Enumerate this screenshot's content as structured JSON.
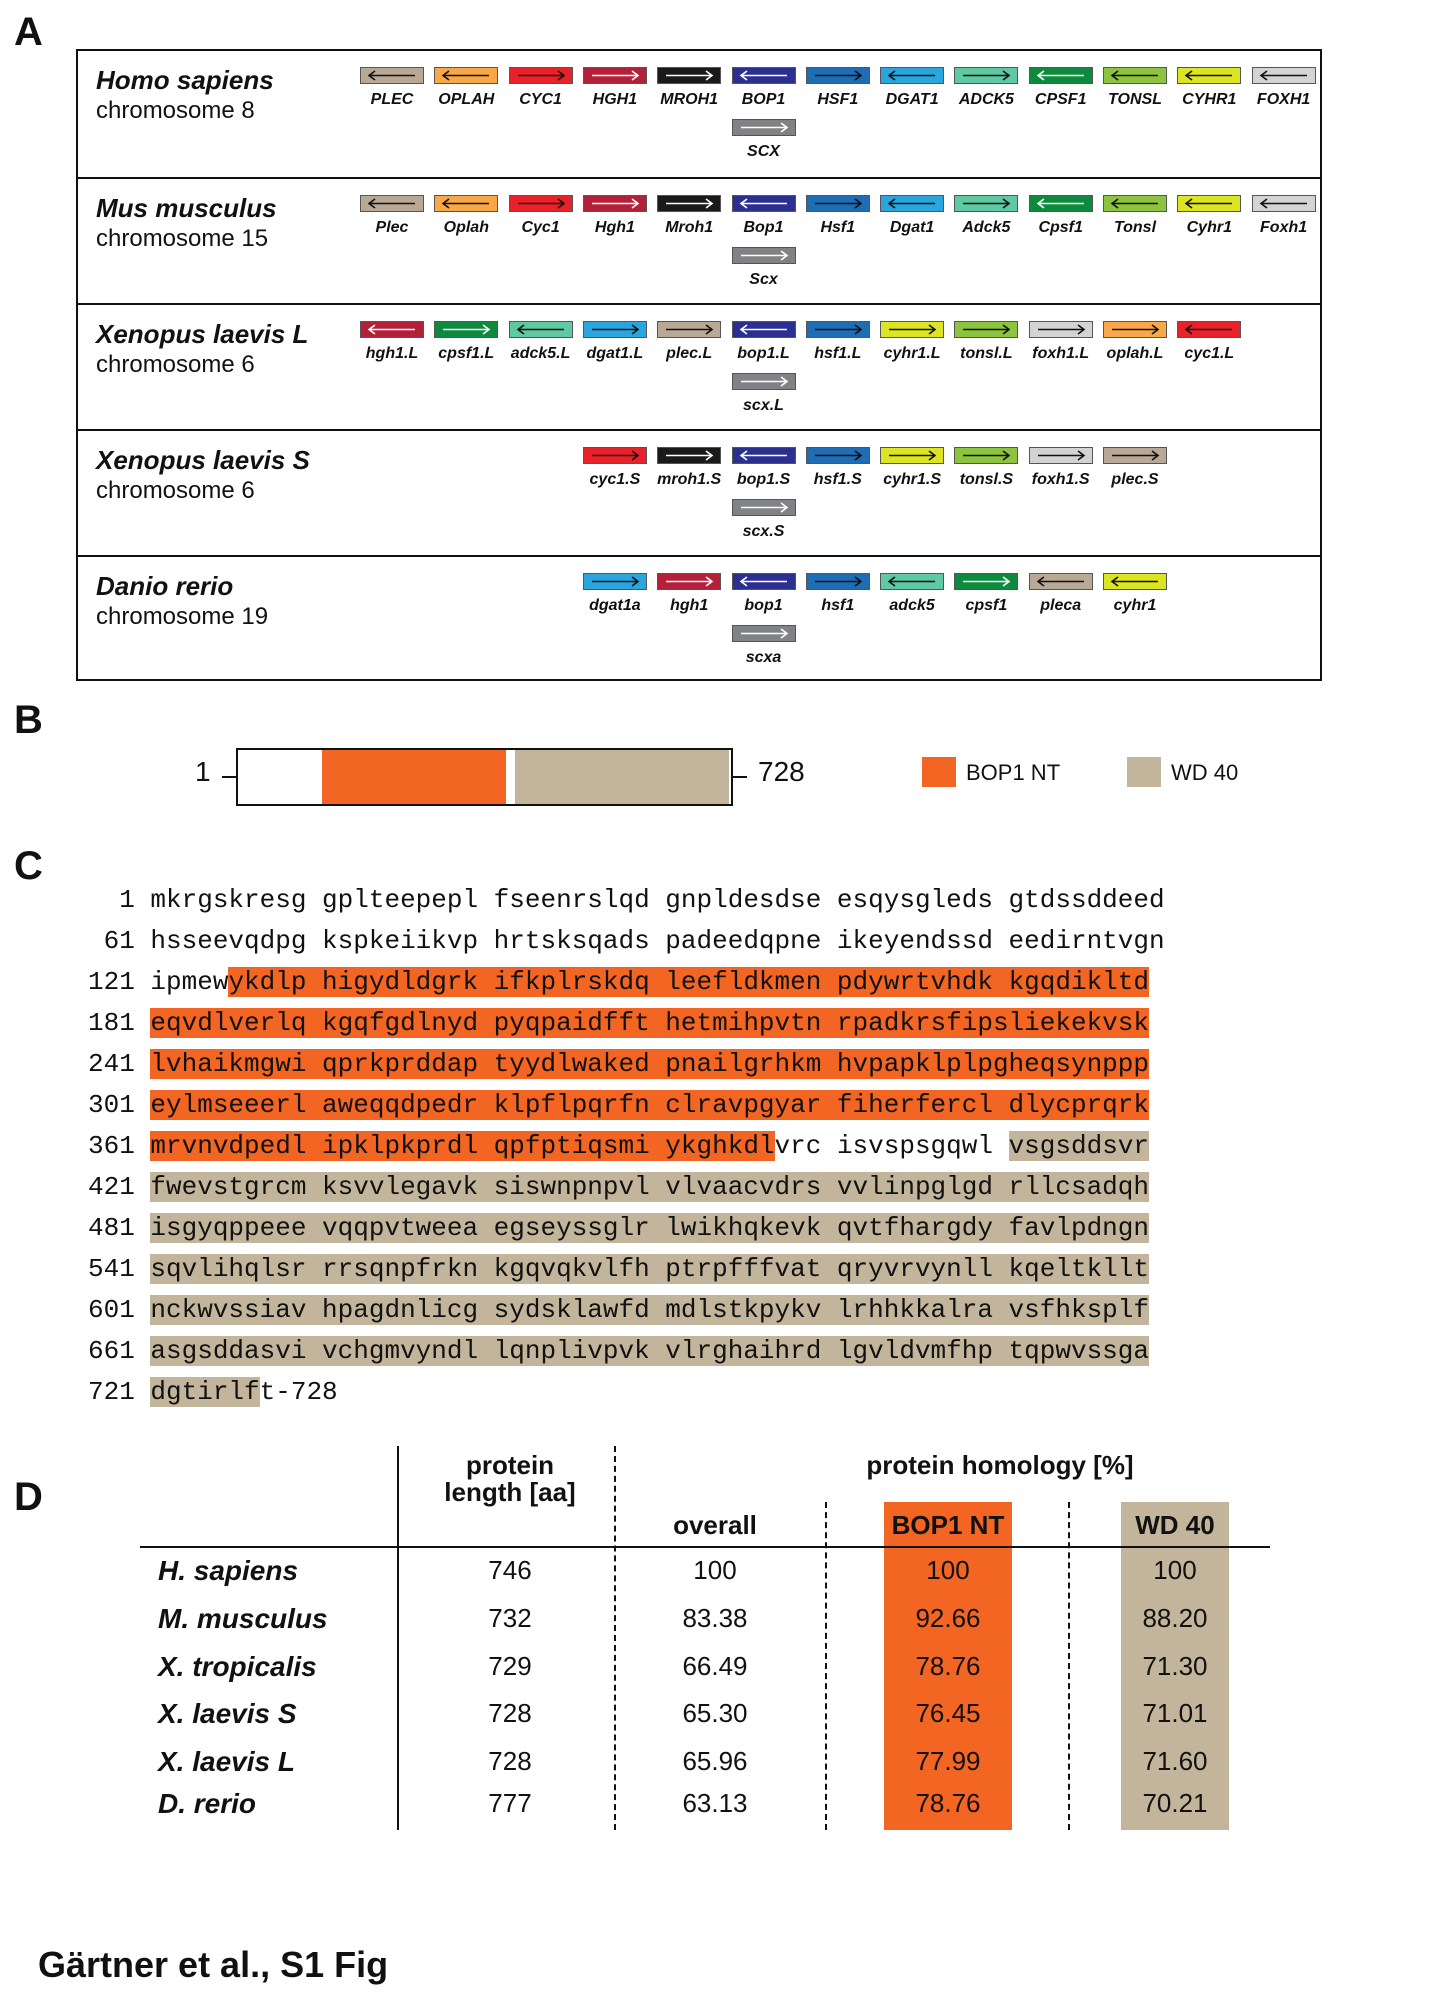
{
  "panel_letters": {
    "a": "A",
    "b": "B",
    "c": "C",
    "d": "D"
  },
  "colors": {
    "PLEC": "#b9a895",
    "OPLAH": "#f8a849",
    "CYC1": "#e8212b",
    "HGH1": "#b3203a",
    "MROH1": "#1a1a1a",
    "BOP1": "#2b2f8f",
    "HSF1": "#1f6db5",
    "DGAT1": "#2aa5de",
    "ADCK5": "#5fc9a3",
    "CPSF1": "#0e8a3f",
    "TONSL": "#8cc33f",
    "CYHR1": "#dbe525",
    "FOXH1": "#d3d3d3",
    "SCX": "#808285",
    "bop1_nt": "#f26522",
    "wd40": "#c2b59b"
  },
  "panelA": {
    "rows": [
      {
        "name": "Homo sapiens",
        "chromosome": "chromosome 8",
        "start_slot": 0,
        "name_top_adjust": 0,
        "genes": [
          {
            "label": "PLEC",
            "key": "PLEC",
            "dir": "left"
          },
          {
            "label": "OPLAH",
            "key": "OPLAH",
            "dir": "left"
          },
          {
            "label": "CYC1",
            "key": "CYC1",
            "dir": "right"
          },
          {
            "label": "HGH1",
            "key": "HGH1",
            "dir": "right"
          },
          {
            "label": "MROH1",
            "key": "MROH1",
            "dir": "right"
          },
          {
            "label": "BOP1",
            "key": "BOP1",
            "dir": "left"
          },
          {
            "label": "HSF1",
            "key": "HSF1",
            "dir": "right"
          },
          {
            "label": "DGAT1",
            "key": "DGAT1",
            "dir": "left"
          },
          {
            "label": "ADCK5",
            "key": "ADCK5",
            "dir": "right"
          },
          {
            "label": "CPSF1",
            "key": "CPSF1",
            "dir": "left"
          },
          {
            "label": "TONSL",
            "key": "TONSL",
            "dir": "left"
          },
          {
            "label": "CYHR1",
            "key": "CYHR1",
            "dir": "left"
          },
          {
            "label": "FOXH1",
            "key": "FOXH1",
            "dir": "left"
          }
        ],
        "extra": {
          "label": "SCX",
          "key": "SCX",
          "dir": "right",
          "under_index": 5
        }
      },
      {
        "name": "Mus musculus",
        "chromosome": "chromosome 15",
        "start_slot": 0,
        "genes": [
          {
            "label": "Plec",
            "key": "PLEC",
            "dir": "left"
          },
          {
            "label": "Oplah",
            "key": "OPLAH",
            "dir": "left"
          },
          {
            "label": "Cyc1",
            "key": "CYC1",
            "dir": "right"
          },
          {
            "label": "Hgh1",
            "key": "HGH1",
            "dir": "right"
          },
          {
            "label": "Mroh1",
            "key": "MROH1",
            "dir": "right"
          },
          {
            "label": "Bop1",
            "key": "BOP1",
            "dir": "left"
          },
          {
            "label": "Hsf1",
            "key": "HSF1",
            "dir": "right"
          },
          {
            "label": "Dgat1",
            "key": "DGAT1",
            "dir": "left"
          },
          {
            "label": "Adck5",
            "key": "ADCK5",
            "dir": "right"
          },
          {
            "label": "Cpsf1",
            "key": "CPSF1",
            "dir": "left"
          },
          {
            "label": "Tonsl",
            "key": "TONSL",
            "dir": "left"
          },
          {
            "label": "Cyhr1",
            "key": "CYHR1",
            "dir": "left"
          },
          {
            "label": "Foxh1",
            "key": "FOXH1",
            "dir": "left"
          }
        ],
        "extra": {
          "label": "Scx",
          "key": "SCX",
          "dir": "right",
          "under_index": 5
        }
      },
      {
        "name": "Xenopus laevis L",
        "chromosome": "chromosome 6",
        "start_slot": 0,
        "genes": [
          {
            "label": "hgh1.L",
            "key": "HGH1",
            "dir": "left"
          },
          {
            "label": "cpsf1.L",
            "key": "CPSF1",
            "dir": "right"
          },
          {
            "label": "adck5.L",
            "key": "ADCK5",
            "dir": "left"
          },
          {
            "label": "dgat1.L",
            "key": "DGAT1",
            "dir": "right"
          },
          {
            "label": "plec.L",
            "key": "PLEC",
            "dir": "right"
          },
          {
            "label": "bop1.L",
            "key": "BOP1",
            "dir": "left"
          },
          {
            "label": "hsf1.L",
            "key": "HSF1",
            "dir": "right"
          },
          {
            "label": "cyhr1.L",
            "key": "CYHR1",
            "dir": "right"
          },
          {
            "label": "tonsl.L",
            "key": "TONSL",
            "dir": "right"
          },
          {
            "label": "foxh1.L",
            "key": "FOXH1",
            "dir": "right"
          },
          {
            "label": "oplah.L",
            "key": "OPLAH",
            "dir": "right"
          },
          {
            "label": "cyc1.L",
            "key": "CYC1",
            "dir": "left"
          }
        ],
        "extra": {
          "label": "scx.L",
          "key": "SCX",
          "dir": "right",
          "under_index": 5
        }
      },
      {
        "name": "Xenopus laevis S",
        "chromosome": "chromosome 6",
        "start_slot": 3,
        "genes": [
          {
            "label": "cyc1.S",
            "key": "CYC1",
            "dir": "right"
          },
          {
            "label": "mroh1.S",
            "key": "MROH1",
            "dir": "right"
          },
          {
            "label": "bop1.S",
            "key": "BOP1",
            "dir": "left"
          },
          {
            "label": "hsf1.S",
            "key": "HSF1",
            "dir": "right"
          },
          {
            "label": "cyhr1.S",
            "key": "CYHR1",
            "dir": "right"
          },
          {
            "label": "tonsl.S",
            "key": "TONSL",
            "dir": "right"
          },
          {
            "label": "foxh1.S",
            "key": "FOXH1",
            "dir": "right"
          },
          {
            "label": "plec.S",
            "key": "PLEC",
            "dir": "right"
          }
        ],
        "extra": {
          "label": "scx.S",
          "key": "SCX",
          "dir": "right",
          "under_index": 2
        }
      },
      {
        "name": "Danio rerio",
        "chromosome": "chromosome 19",
        "start_slot": 3,
        "genes": [
          {
            "label": "dgat1a",
            "key": "DGAT1",
            "dir": "right"
          },
          {
            "label": "hgh1",
            "key": "HGH1",
            "dir": "right"
          },
          {
            "label": "bop1",
            "key": "BOP1",
            "dir": "left"
          },
          {
            "label": "hsf1",
            "key": "HSF1",
            "dir": "right"
          },
          {
            "label": "adck5",
            "key": "ADCK5",
            "dir": "left"
          },
          {
            "label": "cpsf1",
            "key": "CPSF1",
            "dir": "right"
          },
          {
            "label": "pleca",
            "key": "PLEC",
            "dir": "left"
          },
          {
            "label": "cyhr1",
            "key": "CYHR1",
            "dir": "left"
          }
        ],
        "extra": {
          "label": "scxa",
          "key": "SCX",
          "dir": "right",
          "under_index": 2
        }
      }
    ]
  },
  "panelB": {
    "start": "1",
    "end": "728",
    "length": 728,
    "domains": [
      {
        "name": "BOP1 NT",
        "start": 126,
        "end": 397,
        "color_key": "bop1_nt"
      },
      {
        "name": "WD 40",
        "start": 411,
        "end": 727,
        "color_key": "wd40"
      }
    ],
    "legend": [
      {
        "label": "BOP1 NT",
        "color_key": "bop1_nt"
      },
      {
        "label": "WD 40",
        "color_key": "wd40"
      }
    ]
  },
  "panelC": {
    "lines": [
      {
        "num": "1",
        "seq": "mkrgskresg gplteepepl fseenrslqd gnpldesdse esqysgleds gtdssddeed"
      },
      {
        "num": "61",
        "seq": "hsseevqdpg kspkeiikvp hrtsksqads padeedqpne ikeyendssd eedirntvgn"
      },
      {
        "num": "121",
        "seq": "ipmewykdlp higydldgrk ifkplrskdq leefldkmen pdywrtvhdk kgqdikltd"
      },
      {
        "num": "181",
        "seq": "eqvdlverlq kgqfgdlnyd pyqpaidfft hetmihpvtn rpadkrsfipsliekekvsk"
      },
      {
        "num": "241",
        "seq": "lvhaikmgwi qprkprddap tyydlwaked pnailgrhkm hvpapklplpgheqsynppp"
      },
      {
        "num": "301",
        "seq": "eylmseeerl aweqqdpedr klpflpqrfn clravpgyar fiherfercl dlycprqrk"
      },
      {
        "num": "361",
        "seq": "mrvnvdpedl ipklpkprdl qpfptiqsmi ykghkdlvrc isvspsgqwl vsgsddsvr"
      },
      {
        "num": "421",
        "seq": "fwevstgrcm ksvvlegavk siswnpnpvl vlvaacvdrs vvlinpglgd rllcsadqh"
      },
      {
        "num": "481",
        "seq": "isgyqppeee vqqpvtweea egseyssglr lwikhqkevk qvtfhargdy favlpdngn"
      },
      {
        "num": "541",
        "seq": "sqvlihqlsr rrsqnpfrkn kgqvqkvlfh ptrpfffvat qryvrvynll kqeltkllt"
      },
      {
        "num": "601",
        "seq": "nckwvssiav hpagdnlicg sydsklawfd mdlstkpykv lrhhkkalra vsfhksplf"
      },
      {
        "num": "661",
        "seq": "asgsddasvi vchgmvyndl lqnplivpvk vlrghaihrd lgvldvmfhp tqpwvssga"
      },
      {
        "num": "721",
        "seq": "dgtirlft-728"
      }
    ],
    "nt_range": [
      126,
      397
    ],
    "wd_range": [
      411,
      727
    ]
  },
  "panelD": {
    "header_length": "protein\nlength [aa]",
    "header_homology": "protein  homology  [%]",
    "col_overall": "overall",
    "col_nt": "BOP1 NT",
    "col_wd": "WD 40",
    "rows": [
      {
        "species": "H. sapiens",
        "length": "746",
        "overall": "100",
        "nt": "100",
        "wd": "100"
      },
      {
        "species": "M. musculus",
        "length": "732",
        "overall": "83.38",
        "nt": "92.66",
        "wd": "88.20"
      },
      {
        "species": "X. tropicalis",
        "length": "729",
        "overall": "66.49",
        "nt": "78.76",
        "wd": "71.30"
      },
      {
        "species": "X. laevis S",
        "length": "728",
        "overall": "65.30",
        "nt": "76.45",
        "wd": "71.01"
      },
      {
        "species": "X. laevis L",
        "length": "728",
        "overall": "65.96",
        "nt": "77.99",
        "wd": "71.60"
      },
      {
        "species": "D. rerio",
        "length": "777",
        "overall": "63.13",
        "nt": "78.76",
        "wd": "70.21"
      }
    ]
  },
  "footer": "Gärtner et al., S1 Fig"
}
